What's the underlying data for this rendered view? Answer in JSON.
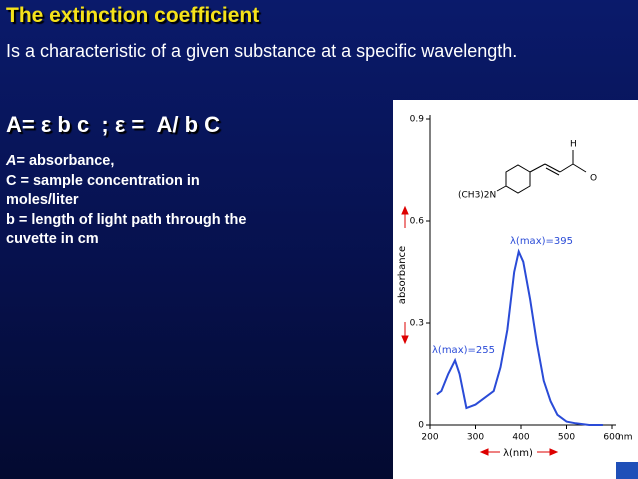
{
  "slide": {
    "title": "The extinction coefficient",
    "intro": "Is a characteristic of a given substance at a specific wavelength.",
    "equation": "A= ε b c  ; ε =  A/ b C",
    "definitions": [
      {
        "symbol": "A",
        "text": "= absorbance,"
      },
      {
        "text": "C = sample concentration in"
      },
      {
        "text": "moles/liter"
      },
      {
        "text": "b = length of light path through the"
      },
      {
        "text": "cuvette in cm"
      }
    ]
  },
  "chart_data": {
    "type": "line",
    "x_label": "λ(nm)",
    "y_label": "absorbance",
    "x_unit": "nm",
    "annotations": [
      "λ(max)=395",
      "λ(max)=255"
    ],
    "structure_labels": [
      "(CH3)2N",
      "H",
      "O"
    ],
    "x": [
      215,
      225,
      240,
      255,
      265,
      280,
      300,
      320,
      340,
      355,
      370,
      385,
      395,
      405,
      420,
      435,
      450,
      465,
      480,
      500,
      520,
      550,
      580
    ],
    "series": [
      {
        "name": "absorbance",
        "color": "#2a4bd7",
        "values": [
          0.09,
          0.1,
          0.15,
          0.19,
          0.15,
          0.05,
          0.06,
          0.08,
          0.1,
          0.17,
          0.28,
          0.45,
          0.51,
          0.48,
          0.37,
          0.24,
          0.13,
          0.07,
          0.03,
          0.01,
          0.005,
          0,
          0
        ]
      }
    ],
    "xlim": [
      200,
      600
    ],
    "ylim": [
      0,
      0.9
    ],
    "xticks": [
      200,
      300,
      400,
      500,
      600
    ],
    "yticks": [
      0,
      0.3,
      0.6,
      0.9
    ]
  }
}
